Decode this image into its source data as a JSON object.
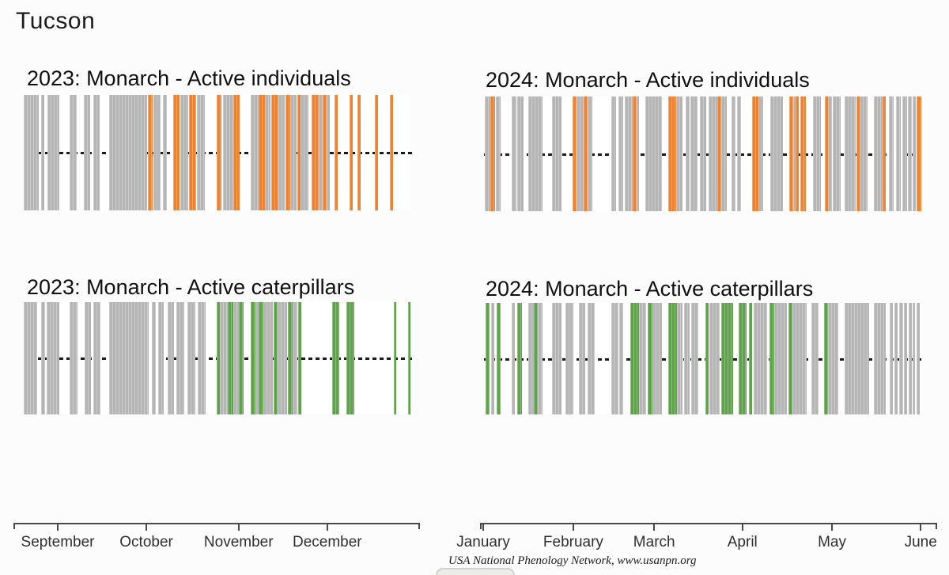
{
  "page": {
    "location_title": "Tucson"
  },
  "chart_data": {
    "type": "barcode-timeline",
    "title": "Tucson",
    "attribution": "USA National Phenology Network, www.usanpn.org",
    "colors": {
      "observed_no_detection": "#b5b5b5",
      "adults_detected": "#ef8230",
      "caterpillars_detected": "#5ea24a"
    },
    "legend_note": "gray = observation day without detection; colored = species phase detected",
    "panels": [
      {
        "id": "2023-individuals",
        "title": "2023: Monarch - Active individuals",
        "color": "#ef8230",
        "midline_pct": 101,
        "segments": [
          [
            0,
            3.9,
            "g"
          ],
          [
            4.4,
            5.3,
            "g"
          ],
          [
            6.1,
            9.2,
            "g"
          ],
          [
            11.9,
            13.7,
            "g"
          ],
          [
            15.5,
            17.2,
            "g"
          ],
          [
            18,
            19.6,
            "g"
          ],
          [
            22.1,
            31.9,
            "g"
          ],
          [
            32.1,
            33.3,
            "p"
          ],
          [
            33.5,
            35.4,
            "g"
          ],
          [
            36,
            37,
            "g"
          ],
          [
            38.7,
            40.3,
            "p"
          ],
          [
            40.5,
            42.5,
            "g"
          ],
          [
            42.7,
            44.6,
            "p"
          ],
          [
            44.8,
            46.8,
            "g"
          ],
          [
            49.9,
            51.1,
            "p"
          ],
          [
            51.5,
            54.2,
            "g"
          ],
          [
            54.2,
            55.8,
            "p"
          ],
          [
            58.7,
            60.7,
            "g"
          ],
          [
            60.7,
            62.4,
            "p"
          ],
          [
            62.4,
            63.8,
            "g"
          ],
          [
            64,
            65.8,
            "p"
          ],
          [
            65.8,
            67.5,
            "g"
          ],
          [
            67.7,
            68.9,
            "p"
          ],
          [
            68.9,
            70.6,
            "g"
          ],
          [
            70.8,
            71.6,
            "p"
          ],
          [
            71.6,
            73.6,
            "g"
          ],
          [
            74.4,
            76.3,
            "p"
          ],
          [
            76.3,
            77.3,
            "g"
          ],
          [
            77.3,
            78.3,
            "p"
          ],
          [
            78.3,
            79.1,
            "g"
          ],
          [
            80.4,
            81.2,
            "p"
          ],
          [
            84.3,
            85.1,
            "p"
          ],
          [
            86.3,
            87.1,
            "p"
          ],
          [
            90.8,
            91.6,
            "p"
          ],
          [
            94.7,
            95.5,
            "p"
          ]
        ]
      },
      {
        "id": "2024-individuals",
        "title": "2024: Monarch - Active individuals",
        "color": "#ef8230",
        "midline_pct": 100,
        "segments": [
          [
            0.2,
            1.4,
            "g"
          ],
          [
            1.4,
            2.5,
            "p"
          ],
          [
            2.7,
            3.8,
            "g"
          ],
          [
            6.3,
            7.4,
            "g"
          ],
          [
            7.6,
            9,
            "g"
          ],
          [
            10.1,
            13.4,
            "g"
          ],
          [
            15.6,
            17.7,
            "g"
          ],
          [
            20.3,
            21.2,
            "p"
          ],
          [
            21.2,
            22.8,
            "g"
          ],
          [
            22.8,
            23.7,
            "p"
          ],
          [
            23.7,
            24.8,
            "g"
          ],
          [
            29.1,
            30.2,
            "g"
          ],
          [
            30.7,
            31.8,
            "g"
          ],
          [
            32.2,
            34,
            "g"
          ],
          [
            34,
            34.9,
            "p"
          ],
          [
            34.9,
            35.4,
            "g"
          ],
          [
            36.9,
            40.7,
            "g"
          ],
          [
            42.1,
            43.9,
            "p"
          ],
          [
            43.9,
            45.4,
            "g"
          ],
          [
            46.1,
            47,
            "g"
          ],
          [
            47.2,
            48.8,
            "g"
          ],
          [
            49.4,
            50.8,
            "g"
          ],
          [
            51.4,
            53.3,
            "g"
          ],
          [
            53.3,
            54.2,
            "p"
          ],
          [
            54.2,
            55.5,
            "g"
          ],
          [
            56.6,
            57.5,
            "g"
          ],
          [
            57.9,
            58.8,
            "g"
          ],
          [
            61.3,
            62.7,
            "p"
          ],
          [
            62.7,
            63.8,
            "g"
          ],
          [
            65.5,
            68.4,
            "g"
          ],
          [
            69.8,
            70.7,
            "p"
          ],
          [
            70.7,
            71.2,
            "g"
          ],
          [
            71.2,
            72,
            "p"
          ],
          [
            72.3,
            73.6,
            "p"
          ],
          [
            75.2,
            77,
            "g"
          ],
          [
            77.9,
            78.7,
            "p"
          ],
          [
            78.7,
            79.6,
            "g"
          ],
          [
            79.7,
            81.6,
            "g"
          ],
          [
            82.5,
            85,
            "g"
          ],
          [
            85.2,
            85.9,
            "p"
          ],
          [
            85.9,
            87.7,
            "g"
          ],
          [
            89.2,
            91.1,
            "g"
          ],
          [
            91.1,
            91.9,
            "p"
          ],
          [
            92.6,
            93.7,
            "g"
          ],
          [
            94.2,
            95.3,
            "g"
          ],
          [
            95.7,
            96.7,
            "g"
          ],
          [
            96.9,
            97.8,
            "g"
          ],
          [
            98,
            98.7,
            "g"
          ],
          [
            98.9,
            100,
            "p"
          ]
        ]
      },
      {
        "id": "2023-caterpillars",
        "title": "2023: Monarch - Active caterpillars",
        "color": "#5ea24a",
        "midline_pct": 101,
        "segments": [
          [
            0,
            3.5,
            "g"
          ],
          [
            4.5,
            5.5,
            "g"
          ],
          [
            5.9,
            9.2,
            "g"
          ],
          [
            11.9,
            13.9,
            "g"
          ],
          [
            15.7,
            17.4,
            "g"
          ],
          [
            18,
            19.8,
            "g"
          ],
          [
            22.1,
            32.3,
            "g"
          ],
          [
            33.1,
            34.2,
            "g"
          ],
          [
            34.8,
            36.2,
            "g"
          ],
          [
            37.2,
            38.9,
            "g"
          ],
          [
            39.5,
            41.5,
            "g"
          ],
          [
            42.3,
            44.4,
            "g"
          ],
          [
            45,
            47,
            "g"
          ],
          [
            49.9,
            50.7,
            "p"
          ],
          [
            50.7,
            52.8,
            "g"
          ],
          [
            52.8,
            54.2,
            "p"
          ],
          [
            54.2,
            55.6,
            "g"
          ],
          [
            55.6,
            56.9,
            "p"
          ],
          [
            58.7,
            59.9,
            "p"
          ],
          [
            59.9,
            60.7,
            "g"
          ],
          [
            60.7,
            62,
            "p"
          ],
          [
            62,
            64.4,
            "g"
          ],
          [
            64.6,
            65.6,
            "p"
          ],
          [
            65.6,
            68.1,
            "g"
          ],
          [
            68.3,
            69.5,
            "p"
          ],
          [
            69.5,
            70.8,
            "g"
          ],
          [
            71,
            71.8,
            "p"
          ],
          [
            79.8,
            81.6,
            "p"
          ],
          [
            83.4,
            85.5,
            "p"
          ],
          [
            95.7,
            96.3,
            "p"
          ],
          [
            99.4,
            100,
            "p"
          ]
        ]
      },
      {
        "id": "2024-caterpillars",
        "title": "2024: Monarch - Active caterpillars",
        "color": "#5ea24a",
        "midline_pct": 100,
        "segments": [
          [
            0.4,
            1.3,
            "p"
          ],
          [
            1.6,
            2.4,
            "g"
          ],
          [
            2.9,
            3.8,
            "p"
          ],
          [
            6.3,
            7.1,
            "g"
          ],
          [
            7.6,
            8.7,
            "p"
          ],
          [
            10.1,
            11.4,
            "g"
          ],
          [
            11.4,
            12.3,
            "p"
          ],
          [
            12.3,
            13.4,
            "g"
          ],
          [
            15.6,
            17.7,
            "g"
          ],
          [
            18.6,
            20.4,
            "g"
          ],
          [
            21.7,
            23.1,
            "g"
          ],
          [
            23.7,
            25.3,
            "g"
          ],
          [
            29.1,
            30.7,
            "g"
          ],
          [
            30.9,
            31.8,
            "g"
          ],
          [
            33.5,
            35.4,
            "p"
          ],
          [
            35.4,
            37.1,
            "g"
          ],
          [
            37.4,
            38.5,
            "p"
          ],
          [
            38.5,
            40.7,
            "g"
          ],
          [
            42.1,
            44.1,
            "p"
          ],
          [
            44.1,
            45.4,
            "g"
          ],
          [
            45.8,
            47,
            "g"
          ],
          [
            47.4,
            49,
            "g"
          ],
          [
            50.6,
            51.4,
            "p"
          ],
          [
            51.5,
            53.9,
            "g"
          ],
          [
            54.2,
            57,
            "p"
          ],
          [
            58.2,
            60,
            "p"
          ],
          [
            60.6,
            61.3,
            "p"
          ],
          [
            61.7,
            64.7,
            "g"
          ],
          [
            65.3,
            66.4,
            "p"
          ],
          [
            66.4,
            69.3,
            "g"
          ],
          [
            69.6,
            70.5,
            "p"
          ],
          [
            70.5,
            73.8,
            "g"
          ],
          [
            74.9,
            76.5,
            "g"
          ],
          [
            77.8,
            78.7,
            "p"
          ],
          [
            78.7,
            81,
            "g"
          ],
          [
            82.5,
            88.1,
            "g"
          ],
          [
            89.2,
            91.9,
            "g"
          ],
          [
            92.8,
            93.5,
            "g"
          ],
          [
            93.9,
            94.6,
            "g"
          ],
          [
            95,
            95.8,
            "g"
          ],
          [
            96.1,
            96.7,
            "g"
          ],
          [
            97.1,
            97.8,
            "g"
          ],
          [
            98,
            98.6,
            "g"
          ],
          [
            98.9,
            99.7,
            "g"
          ]
        ]
      }
    ],
    "axes": [
      {
        "id": "axis-2023",
        "ticks": [
          {
            "label": "September",
            "pct": 10.9
          },
          {
            "label": "October",
            "pct": 32.7
          },
          {
            "label": "November",
            "pct": 55.4
          },
          {
            "label": "December",
            "pct": 77.2
          }
        ]
      },
      {
        "id": "axis-2024",
        "ticks": [
          {
            "label": "January",
            "pct": 0.7
          },
          {
            "label": "February",
            "pct": 20.4
          },
          {
            "label": "March",
            "pct": 38.1
          },
          {
            "label": "April",
            "pct": 57.4
          },
          {
            "label": "May",
            "pct": 77.0
          },
          {
            "label": "June",
            "pct": 96.4
          }
        ]
      }
    ]
  }
}
